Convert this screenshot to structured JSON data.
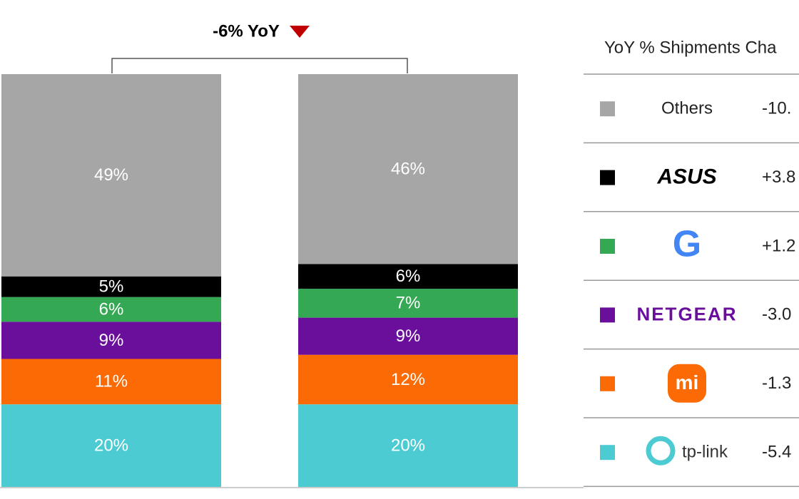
{
  "chart_data": {
    "type": "stacked_bar",
    "annotation": "-6% YoY",
    "table_title": "YoY % Shipments Cha",
    "categories": [
      null,
      null
    ],
    "ylim": [
      0,
      100
    ],
    "series": [
      {
        "name": "tp-link",
        "color": "#4ccbd3",
        "values": [
          20,
          20
        ],
        "value_labels": [
          "20%",
          "20%"
        ],
        "yoy": "-5.4"
      },
      {
        "name": "mi",
        "color": "#fb6a05",
        "values": [
          11,
          12
        ],
        "value_labels": [
          "11%",
          "12%"
        ],
        "yoy": "-1.3"
      },
      {
        "name": "NETGEAR",
        "color": "#6a0f9c",
        "values": [
          9,
          9
        ],
        "value_labels": [
          "9%",
          "9%"
        ],
        "yoy": "-3.0"
      },
      {
        "name": "G",
        "color": "#34a853",
        "values": [
          6,
          7
        ],
        "value_labels": [
          "6%",
          "7%"
        ],
        "yoy": "+1.2"
      },
      {
        "name": "ASUS",
        "color": "#000000",
        "values": [
          5,
          6
        ],
        "value_labels": [
          "5%",
          "6%"
        ],
        "yoy": "+3.8"
      },
      {
        "name": "Others",
        "color": "#a6a6a6",
        "values": [
          49,
          46
        ],
        "value_labels": [
          "49%",
          "46%"
        ],
        "yoy": "-10."
      }
    ]
  }
}
